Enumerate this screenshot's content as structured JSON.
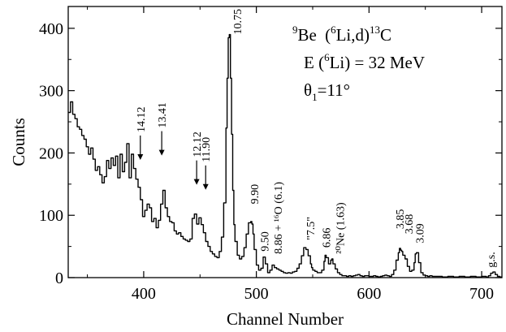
{
  "chart_data": {
    "type": "line",
    "title": "",
    "xlabel": "Channel Number",
    "ylabel": "Counts",
    "xlim": [
      333,
      718
    ],
    "ylim": [
      0,
      435
    ],
    "xticks": [
      400,
      500,
      600,
      700
    ],
    "yticks": [
      0,
      100,
      200,
      300,
      400
    ],
    "grid": false,
    "reaction": {
      "target_mass": "9",
      "target": "Be",
      "beam_mass": "6",
      "beam_rest": "Li,d)",
      "product_mass": "13",
      "product": "C",
      "energy_label": "E (",
      "energy_mass": "6",
      "energy_rest": "Li) = 32 MeV",
      "theta": "θ",
      "theta_sub": "1",
      "theta_value": "=11°"
    },
    "series": [
      {
        "x": [
          333,
          335,
          337,
          339,
          341,
          343,
          345,
          347,
          349,
          351,
          353,
          355,
          357,
          359,
          361,
          363,
          365,
          367,
          369,
          371,
          373,
          375,
          377,
          379,
          381,
          383,
          385,
          387,
          389,
          391,
          393,
          395,
          397,
          399,
          401,
          403,
          405,
          407,
          409,
          411,
          413,
          415,
          417,
          419,
          421,
          423,
          425,
          427,
          429,
          431,
          433,
          435,
          437,
          439,
          441,
          443,
          445,
          447,
          449,
          451,
          453,
          455,
          457,
          459,
          461,
          463,
          465,
          467,
          469,
          471,
          473,
          474,
          475,
          476,
          477,
          478,
          479,
          480,
          481,
          483,
          485,
          487,
          489,
          491,
          493,
          495,
          496,
          497,
          498,
          500,
          502,
          504,
          506,
          508,
          510,
          512,
          514,
          516,
          518,
          520,
          522,
          524,
          526,
          528,
          530,
          532,
          534,
          536,
          538,
          540,
          542,
          544,
          546,
          548,
          549,
          550,
          552,
          554,
          556,
          558,
          560,
          561,
          562,
          564,
          566,
          567,
          568,
          570,
          572,
          574,
          576,
          578,
          580,
          582,
          584,
          586,
          588,
          590,
          592,
          594,
          596,
          598,
          600,
          602,
          604,
          606,
          608,
          610,
          612,
          614,
          616,
          618,
          620,
          622,
          624,
          626,
          627,
          628,
          629,
          630,
          632,
          634,
          636,
          638,
          640,
          641,
          642,
          644,
          646,
          648,
          650,
          652,
          654,
          656,
          660,
          665,
          670,
          675,
          680,
          685,
          690,
          695,
          700,
          704,
          706,
          708,
          710,
          712,
          714,
          716,
          718
        ],
        "values": [
          265,
          282,
          262,
          255,
          242,
          238,
          228,
          222,
          210,
          198,
          208,
          190,
          172,
          178,
          165,
          152,
          162,
          188,
          175,
          192,
          180,
          195,
          160,
          198,
          170,
          185,
          215,
          160,
          198,
          175,
          158,
          145,
          125,
          98,
          108,
          118,
          112,
          90,
          95,
          80,
          92,
          118,
          140,
          112,
          98,
          90,
          88,
          75,
          70,
          72,
          66,
          62,
          60,
          58,
          62,
          95,
          102,
          86,
          96,
          85,
          72,
          58,
          50,
          42,
          38,
          34,
          32,
          42,
          65,
          120,
          240,
          320,
          385,
          390,
          320,
          230,
          140,
          85,
          58,
          36,
          30,
          34,
          48,
          70,
          88,
          90,
          86,
          70,
          45,
          20,
          12,
          15,
          33,
          22,
          8,
          12,
          20,
          16,
          14,
          12,
          10,
          8,
          7,
          8,
          7,
          9,
          10,
          15,
          22,
          35,
          48,
          45,
          35,
          22,
          16,
          12,
          10,
          8,
          8,
          12,
          26,
          36,
          32,
          22,
          28,
          30,
          22,
          14,
          8,
          5,
          3,
          3,
          2,
          3,
          2,
          3,
          4,
          5,
          3,
          2,
          3,
          3,
          2,
          2,
          3,
          2,
          1,
          2,
          3,
          4,
          3,
          2,
          5,
          12,
          28,
          40,
          47,
          44,
          42,
          36,
          30,
          18,
          10,
          12,
          24,
          38,
          40,
          24,
          8,
          4,
          3,
          2,
          3,
          2,
          2,
          1,
          2,
          1,
          2,
          1,
          2,
          1,
          2,
          1,
          3,
          7,
          9,
          5,
          2,
          1,
          1
        ]
      }
    ],
    "annotations": [
      {
        "text": "14.12",
        "x": 397,
        "y": 228,
        "arrow": true
      },
      {
        "text": "13.41",
        "x": 416,
        "y": 235,
        "arrow": true
      },
      {
        "text": "12.12",
        "x": 447,
        "y": 188,
        "arrow": true
      },
      {
        "text": "11.90",
        "x": 455,
        "y": 180,
        "arrow": true
      },
      {
        "text": "10.75",
        "x": 483,
        "y": 390,
        "arrow": false
      },
      {
        "text": "9.90",
        "x": 498,
        "y": 118,
        "arrow": false
      },
      {
        "text": "9.50",
        "x": 507,
        "y": 42,
        "arrow": false
      },
      {
        "text": "8.86 + ¹⁶O (6.1)",
        "x": 519,
        "y": 38,
        "arrow": false
      },
      {
        "text": "\"7.5\"",
        "x": 548,
        "y": 60,
        "arrow": false
      },
      {
        "text": "6.86",
        "x": 562,
        "y": 48,
        "arrow": false
      },
      {
        "text": "²⁰Ne (1.63)",
        "x": 574,
        "y": 38,
        "arrow": false
      },
      {
        "text": "3.85",
        "x": 627,
        "y": 78,
        "arrow": false
      },
      {
        "text": "3.68",
        "x": 635,
        "y": 70,
        "arrow": false
      },
      {
        "text": "3.09",
        "x": 645,
        "y": 55,
        "arrow": false
      },
      {
        "text": "g.s.",
        "x": 708,
        "y": 16,
        "arrow": false
      }
    ]
  }
}
